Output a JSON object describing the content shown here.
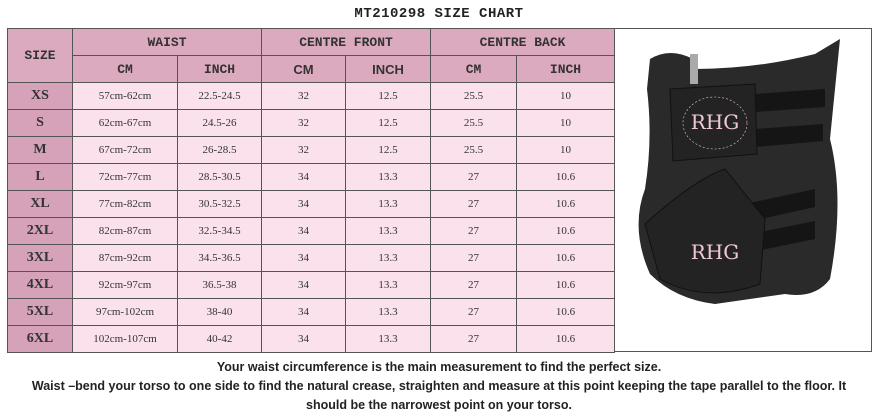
{
  "title": "MT210298 SIZE CHART",
  "headers": {
    "size": "SIZE",
    "waist": "WAIST",
    "centre_front": "CENTRE FRONT",
    "centre_back": "CENTRE BACK",
    "cm": "CM",
    "inch": "INCH"
  },
  "rows": [
    {
      "size": "XS",
      "waist_cm": "57cm-62cm",
      "waist_inch": "22.5-24.5",
      "cf_cm": "32",
      "cf_inch": "12.5",
      "cb_cm": "25.5",
      "cb_inch": "10"
    },
    {
      "size": "S",
      "waist_cm": "62cm-67cm",
      "waist_inch": "24.5-26",
      "cf_cm": "32",
      "cf_inch": "12.5",
      "cb_cm": "25.5",
      "cb_inch": "10"
    },
    {
      "size": "M",
      "waist_cm": "67cm-72cm",
      "waist_inch": "26-28.5",
      "cf_cm": "32",
      "cf_inch": "12.5",
      "cb_cm": "25.5",
      "cb_inch": "10"
    },
    {
      "size": "L",
      "waist_cm": "72cm-77cm",
      "waist_inch": "28.5-30.5",
      "cf_cm": "34",
      "cf_inch": "13.3",
      "cb_cm": "27",
      "cb_inch": "10.6"
    },
    {
      "size": "XL",
      "waist_cm": "77cm-82cm",
      "waist_inch": "30.5-32.5",
      "cf_cm": "34",
      "cf_inch": "13.3",
      "cb_cm": "27",
      "cb_inch": "10.6"
    },
    {
      "size": "2XL",
      "waist_cm": "82cm-87cm",
      "waist_inch": "32.5-34.5",
      "cf_cm": "34",
      "cf_inch": "13.3",
      "cb_cm": "27",
      "cb_inch": "10.6"
    },
    {
      "size": "3XL",
      "waist_cm": "87cm-92cm",
      "waist_inch": "34.5-36.5",
      "cf_cm": "34",
      "cf_inch": "13.3",
      "cb_cm": "27",
      "cb_inch": "10.6"
    },
    {
      "size": "4XL",
      "waist_cm": "92cm-97cm",
      "waist_inch": "36.5-38",
      "cf_cm": "34",
      "cf_inch": "13.3",
      "cb_cm": "27",
      "cb_inch": "10.6"
    },
    {
      "size": "5XL",
      "waist_cm": "97cm-102cm",
      "waist_inch": "38-40",
      "cf_cm": "34",
      "cf_inch": "13.3",
      "cb_cm": "27",
      "cb_inch": "10.6"
    },
    {
      "size": "6XL",
      "waist_cm": "102cm-107cm",
      "waist_inch": "40-42",
      "cf_cm": "34",
      "cf_inch": "13.3",
      "cb_cm": "27",
      "cb_inch": "10.6"
    }
  ],
  "product_image": {
    "logo_text": "RHG",
    "colors": {
      "garment": "#2a2a2a",
      "logo": "#f0c8d4"
    }
  },
  "notes": [
    "Your waist circumference is the main measurement to find the perfect size.",
    "Waist –bend your torso to one side to find the natural crease, straighten and measure at this point keeping the tape parallel to the floor. It",
    "should be the narrowest point on your torso."
  ]
}
